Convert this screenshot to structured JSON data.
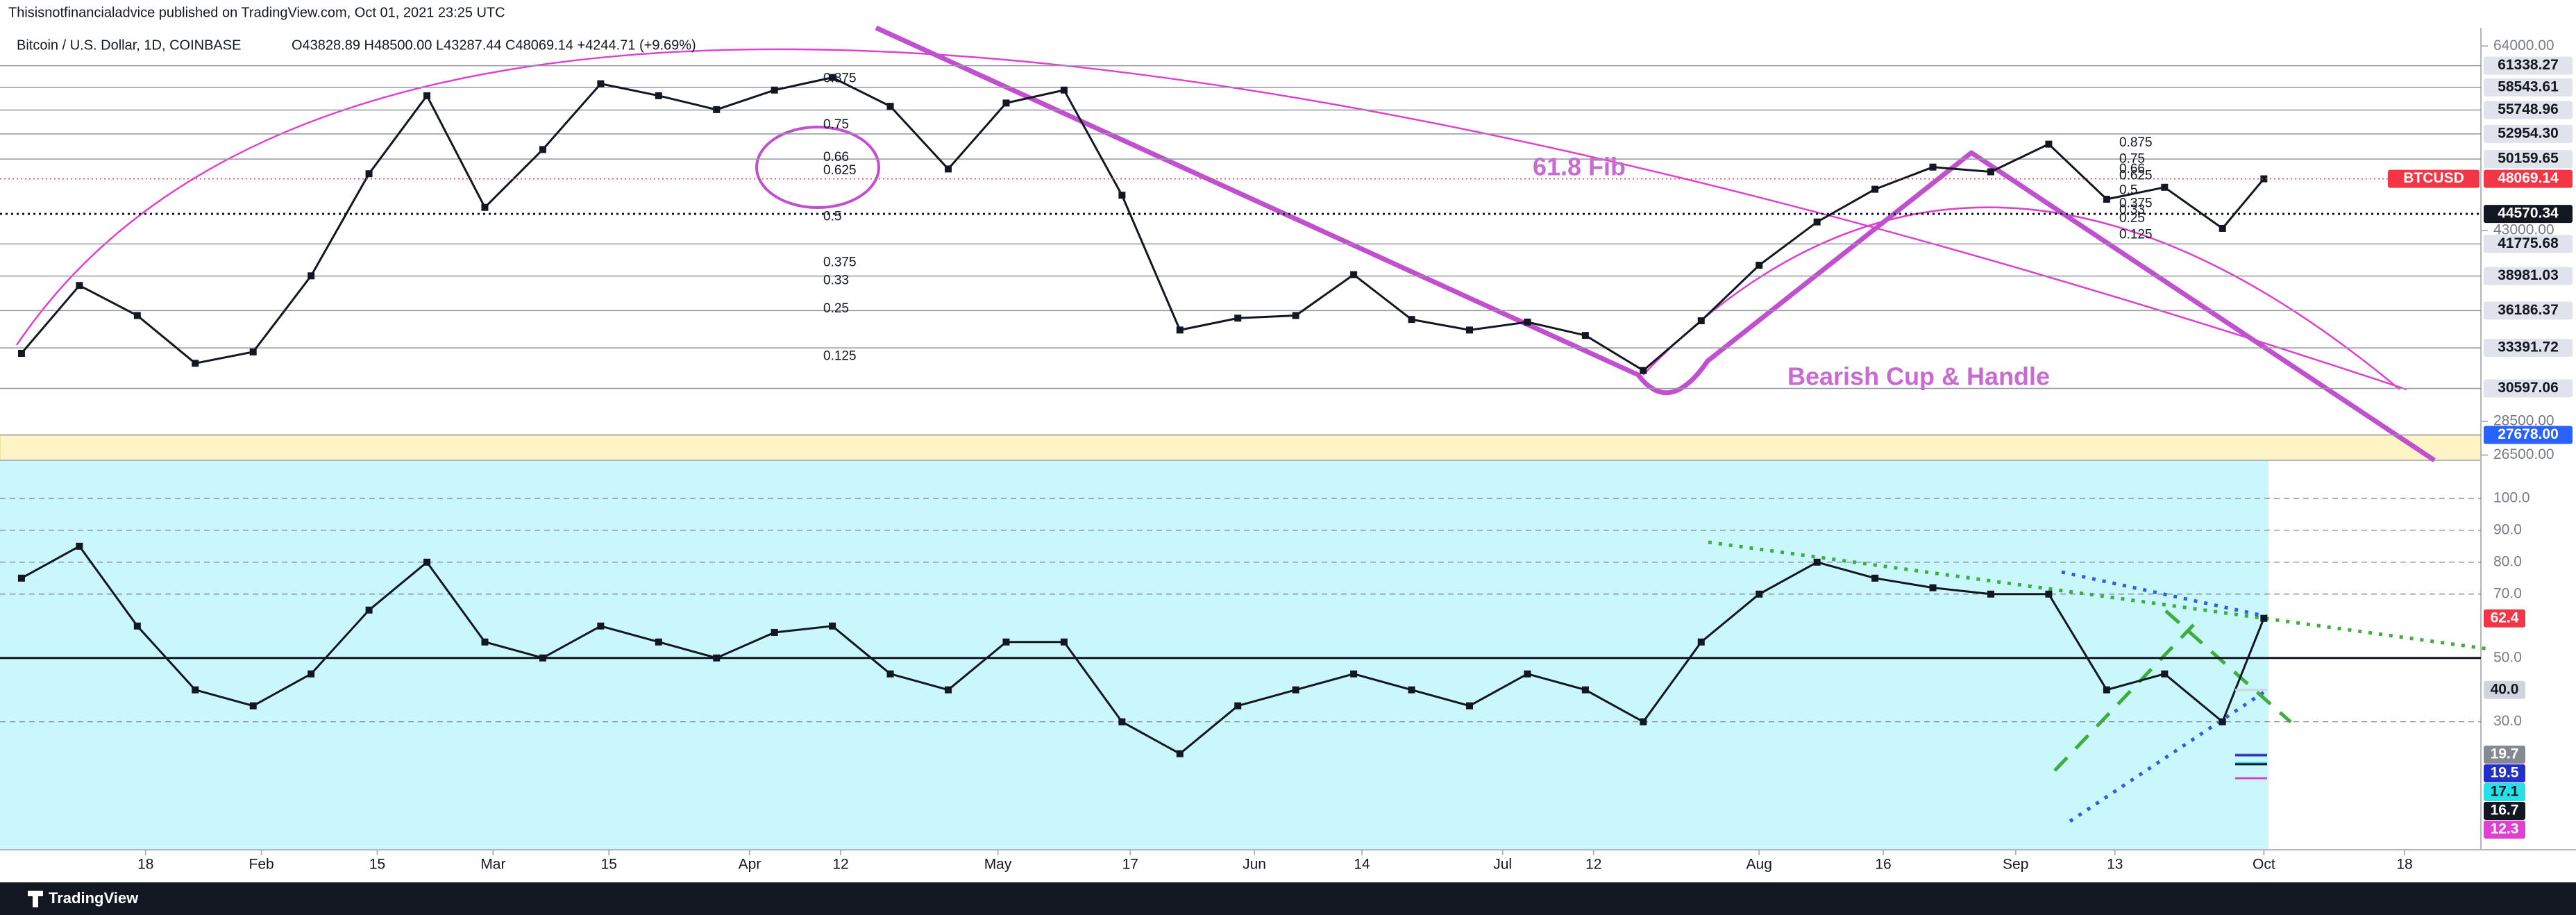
{
  "header": {
    "publisher": "Thisisnotfinancialadvice published on TradingView.com, Oct 01, 2021 23:25 UTC"
  },
  "footer": {
    "brand": "TradingView"
  },
  "chart_data": [
    {
      "type": "line",
      "title": "Bitcoin / U.S. Dollar, 1D, COINBASE",
      "ohlc": "O43828.89  H48500.00  L43287.44  C48069.14  +4244.71 (+9.69%)",
      "x": [
        2,
        9,
        16,
        23,
        30,
        37,
        44,
        51,
        58,
        65,
        72,
        79,
        86,
        93,
        100,
        107,
        114,
        121,
        128,
        135,
        142,
        149,
        156,
        163,
        170,
        177,
        184,
        191,
        198,
        205,
        212,
        219,
        226,
        233,
        240,
        247,
        254,
        261,
        268,
        273
      ],
      "series": [
        {
          "name": "BTCUSD",
          "color": "#131722",
          "values": [
            33000,
            38200,
            35800,
            32300,
            33100,
            39000,
            48600,
            57500,
            45200,
            51200,
            59000,
            57500,
            55800,
            58200,
            59800,
            56200,
            49100,
            56600,
            58200,
            46400,
            34700,
            35600,
            35800,
            39100,
            35500,
            34700,
            35300,
            34300,
            31800,
            35400,
            39900,
            43800,
            47000,
            49300,
            48800,
            51800,
            46000,
            47200,
            43200,
            48069.14
          ]
        }
      ],
      "levels": {
        "values": [
          61338.27,
          58543.61,
          55748.96,
          52954.3,
          50159.65,
          44570.34,
          41775.68,
          38981.03,
          36186.37,
          33391.72,
          30597.06,
          27678.0
        ],
        "value_labels": [
          "61338.27",
          "58543.61",
          "55748.96",
          "52954.30",
          "50159.65",
          "44570.34",
          "41775.68",
          "38981.03",
          "36186.37",
          "33391.72",
          "30597.06",
          "27678.00"
        ]
      },
      "ylim": [
        26500,
        64000
      ],
      "log_scale": true,
      "yticks": [
        {
          "value": 64000,
          "label": "64000.00"
        },
        {
          "value": 43000,
          "label": "43000.00"
        },
        {
          "value": 28500,
          "label": "28500.00"
        },
        {
          "value": 26500,
          "label": "26500.00"
        }
      ],
      "xlim": [
        0,
        300
      ],
      "fib_left": [
        "0.875",
        "0.75",
        "0.66",
        "0.625",
        "0.5",
        "0.375",
        "0.33",
        "0.25",
        "0.125"
      ],
      "fib_right": [
        "0.875",
        "0.75",
        "0.66",
        "0.625",
        "0.5",
        "0.375",
        "0.33",
        "0.25",
        "0.125"
      ],
      "annotations": [
        "61.8 Fib",
        "Bearish Cup & Handle"
      ]
    },
    {
      "type": "line",
      "x": [
        2,
        9,
        16,
        23,
        30,
        37,
        44,
        51,
        58,
        65,
        72,
        79,
        86,
        93,
        100,
        107,
        114,
        121,
        128,
        135,
        142,
        149,
        156,
        163,
        170,
        177,
        184,
        191,
        198,
        205,
        212,
        219,
        226,
        233,
        240,
        247,
        254,
        261,
        268,
        273
      ],
      "series": [
        {
          "color": "#131722",
          "values": [
            75,
            85,
            60,
            40,
            35,
            45,
            65,
            80,
            55,
            50,
            60,
            55,
            50,
            58,
            60,
            45,
            40,
            55,
            55,
            30,
            20,
            35,
            40,
            45,
            40,
            35,
            45,
            40,
            30,
            55,
            70,
            80,
            75,
            72,
            70,
            70,
            40,
            45,
            30,
            62.4
          ]
        }
      ],
      "markers": {
        "values": [
          40.0,
          19.7,
          19.5,
          17.1,
          16.7,
          12.3
        ],
        "value_labels": [
          "40.0",
          "19.7",
          "19.5",
          "17.1",
          "16.7",
          "12.3"
        ],
        "colors": [
          "#d1d4dc",
          "#868993",
          "#2130c8",
          "#26e0e8",
          "#131722",
          "#e040d0"
        ]
      },
      "ylim": [
        -10,
        112
      ],
      "yticks": [
        {
          "value": 100,
          "label": "100.0"
        },
        {
          "value": 90,
          "label": "90.0"
        },
        {
          "value": 80,
          "label": "80.0"
        },
        {
          "value": 70,
          "label": "70.0"
        },
        {
          "value": 50,
          "label": "50.0"
        },
        {
          "value": 30,
          "label": "30.0"
        }
      ],
      "xlim": [
        0,
        300
      ],
      "xticks": [
        {
          "value": 17,
          "label": "18"
        },
        {
          "value": 31,
          "label": "Feb"
        },
        {
          "value": 45,
          "label": "15"
        },
        {
          "value": 59,
          "label": "Mar"
        },
        {
          "value": 73,
          "label": "15"
        },
        {
          "value": 90,
          "label": "Apr"
        },
        {
          "value": 101,
          "label": "12"
        },
        {
          "value": 120,
          "label": "May"
        },
        {
          "value": 136,
          "label": "17"
        },
        {
          "value": 151,
          "label": "Jun"
        },
        {
          "value": 164,
          "label": "14"
        },
        {
          "value": 181,
          "label": "Jul"
        },
        {
          "value": 192,
          "label": "12"
        },
        {
          "value": 212,
          "label": "Aug"
        },
        {
          "value": 227,
          "label": "16"
        },
        {
          "value": 243,
          "label": "Sep"
        },
        {
          "value": 255,
          "label": "13"
        },
        {
          "value": 273,
          "label": "Oct"
        },
        {
          "value": 290,
          "label": "18"
        }
      ]
    }
  ]
}
